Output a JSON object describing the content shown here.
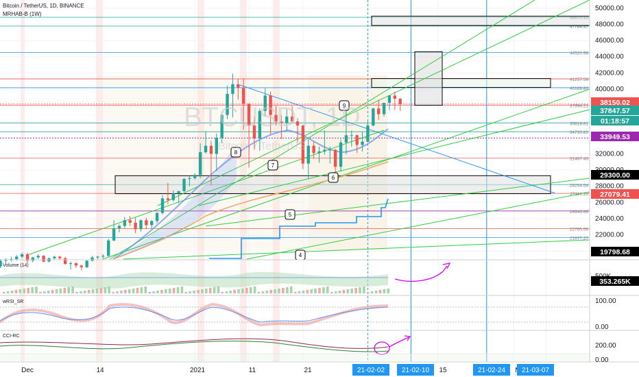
{
  "header": {
    "symbol": "Bitcoin / TetherUS, 1D, BINANCE",
    "indicator": "MRHAB-B (1W)"
  },
  "watermark": {
    "symbol": "BTCUSDT, 1D",
    "name": "Bitcoin / TetherUS"
  },
  "colors": {
    "up": "#26a69a",
    "down": "#ef5350",
    "trendline": "#2ecc40",
    "level_blue": "#2196f3",
    "level_red": "#ef5350",
    "level_green": "#26a69a",
    "level_purple": "#9c27b0",
    "annotation_magenta": "#d500f9"
  },
  "chart_data": [
    {
      "type": "candlestick",
      "title": "Bitcoin / TetherUS, 1D, BINANCE",
      "ylim": [
        19000,
        51000
      ],
      "y_scale": "linear",
      "y_ticks": [
        20000,
        22000,
        24000,
        26000,
        28000,
        30000,
        32000,
        34000,
        36000,
        38000,
        40000,
        42000,
        44000,
        46000,
        48000,
        50000
      ],
      "y_tick_labels": [
        "20000.00",
        "22000.00",
        "24000.00",
        "26000.00",
        "28000.00",
        "30000.00",
        "32000.00",
        "34000.00",
        "36000.00",
        "38000.00",
        "40000.00",
        "42000.00",
        "44000.00",
        "46000.00",
        "48000.00",
        "50000.00"
      ],
      "x_tick_labels": [
        "Dec",
        "14",
        "2021",
        "11",
        "21",
        "15",
        "Mar"
      ],
      "x_date_badges": [
        "21-02-02",
        "21-02-10",
        "21-02-24",
        "21-03-07"
      ],
      "candles": [
        {
          "date": "2020-11-26",
          "open": 18100,
          "high": 19000,
          "low": 17900,
          "close": 18800
        },
        {
          "date": "2020-11-27",
          "open": 18800,
          "high": 19100,
          "low": 18500,
          "close": 18900
        },
        {
          "date": "2020-11-28",
          "open": 18900,
          "high": 19300,
          "low": 18700,
          "close": 19000
        },
        {
          "date": "2020-11-29",
          "open": 19000,
          "high": 19500,
          "low": 18800,
          "close": 19300
        },
        {
          "date": "2020-11-30",
          "open": 19300,
          "high": 19800,
          "low": 19100,
          "close": 19600
        },
        {
          "date": "2020-12-01",
          "open": 19600,
          "high": 19800,
          "low": 18500,
          "close": 18800
        },
        {
          "date": "2020-12-02",
          "open": 18800,
          "high": 19300,
          "low": 18600,
          "close": 19200
        },
        {
          "date": "2020-12-03",
          "open": 19200,
          "high": 19600,
          "low": 19000,
          "close": 19400
        },
        {
          "date": "2020-12-04",
          "open": 19400,
          "high": 19500,
          "low": 18600,
          "close": 18700
        },
        {
          "date": "2020-12-05",
          "open": 18700,
          "high": 19200,
          "low": 18600,
          "close": 19100
        },
        {
          "date": "2020-12-06",
          "open": 19100,
          "high": 19400,
          "low": 18900,
          "close": 19300
        },
        {
          "date": "2020-12-07",
          "open": 19300,
          "high": 19400,
          "low": 18900,
          "close": 19100
        },
        {
          "date": "2020-12-08",
          "open": 19100,
          "high": 19300,
          "low": 18300,
          "close": 18400
        },
        {
          "date": "2020-12-09",
          "open": 18400,
          "high": 18700,
          "low": 17700,
          "close": 18500
        },
        {
          "date": "2020-12-10",
          "open": 18500,
          "high": 18600,
          "low": 17900,
          "close": 18200
        },
        {
          "date": "2020-12-11",
          "open": 18200,
          "high": 18300,
          "low": 17600,
          "close": 18000
        },
        {
          "date": "2020-12-12",
          "open": 18000,
          "high": 18900,
          "low": 17900,
          "close": 18800
        },
        {
          "date": "2020-12-13",
          "open": 18800,
          "high": 19400,
          "low": 18700,
          "close": 19200
        },
        {
          "date": "2020-12-14",
          "open": 19200,
          "high": 19400,
          "low": 19000,
          "close": 19300
        },
        {
          "date": "2020-12-15",
          "open": 19300,
          "high": 19600,
          "low": 19100,
          "close": 19400
        },
        {
          "date": "2020-12-16",
          "open": 19400,
          "high": 21500,
          "low": 19300,
          "close": 21300
        },
        {
          "date": "2020-12-17",
          "open": 21300,
          "high": 23800,
          "low": 21200,
          "close": 22800
        },
        {
          "date": "2020-12-18",
          "open": 22800,
          "high": 23300,
          "low": 22300,
          "close": 23100
        },
        {
          "date": "2020-12-19",
          "open": 23100,
          "high": 24200,
          "low": 22800,
          "close": 23800
        },
        {
          "date": "2020-12-20",
          "open": 23800,
          "high": 24300,
          "low": 23100,
          "close": 23500
        },
        {
          "date": "2020-12-21",
          "open": 23500,
          "high": 24100,
          "low": 22200,
          "close": 22700
        },
        {
          "date": "2020-12-22",
          "open": 22700,
          "high": 23900,
          "low": 22400,
          "close": 23800
        },
        {
          "date": "2020-12-23",
          "open": 23800,
          "high": 24100,
          "low": 22700,
          "close": 23200
        },
        {
          "date": "2020-12-24",
          "open": 23200,
          "high": 23800,
          "low": 22800,
          "close": 23700
        },
        {
          "date": "2020-12-25",
          "open": 23700,
          "high": 24800,
          "low": 23400,
          "close": 24700
        },
        {
          "date": "2020-12-26",
          "open": 24700,
          "high": 26900,
          "low": 24500,
          "close": 26500
        },
        {
          "date": "2020-12-27",
          "open": 26500,
          "high": 28400,
          "low": 25800,
          "close": 26300
        },
        {
          "date": "2020-12-28",
          "open": 26300,
          "high": 27500,
          "low": 26100,
          "close": 27100
        },
        {
          "date": "2020-12-29",
          "open": 27100,
          "high": 27400,
          "low": 25900,
          "close": 27400
        },
        {
          "date": "2020-12-30",
          "open": 27400,
          "high": 29000,
          "low": 27300,
          "close": 28900
        },
        {
          "date": "2020-12-31",
          "open": 28900,
          "high": 29300,
          "low": 28000,
          "close": 29000
        },
        {
          "date": "2021-01-01",
          "open": 29000,
          "high": 29600,
          "low": 28800,
          "close": 29400
        },
        {
          "date": "2021-01-02",
          "open": 29400,
          "high": 33300,
          "low": 29000,
          "close": 32200
        },
        {
          "date": "2021-01-03",
          "open": 32200,
          "high": 34800,
          "low": 32000,
          "close": 33000
        },
        {
          "date": "2021-01-04",
          "open": 33000,
          "high": 33600,
          "low": 28100,
          "close": 32000
        },
        {
          "date": "2021-01-05",
          "open": 32000,
          "high": 34500,
          "low": 29900,
          "close": 34000
        },
        {
          "date": "2021-01-06",
          "open": 34000,
          "high": 36900,
          "low": 33300,
          "close": 36800
        },
        {
          "date": "2021-01-07",
          "open": 36800,
          "high": 40400,
          "low": 36300,
          "close": 39400
        },
        {
          "date": "2021-01-08",
          "open": 39400,
          "high": 41900,
          "low": 36500,
          "close": 40600
        },
        {
          "date": "2021-01-09",
          "open": 40600,
          "high": 41300,
          "low": 38700,
          "close": 40200
        },
        {
          "date": "2021-01-10",
          "open": 40200,
          "high": 41300,
          "low": 35000,
          "close": 38200
        },
        {
          "date": "2021-01-11",
          "open": 38200,
          "high": 38200,
          "low": 30300,
          "close": 35500
        },
        {
          "date": "2021-01-12",
          "open": 35500,
          "high": 36600,
          "low": 32500,
          "close": 33900
        },
        {
          "date": "2021-01-13",
          "open": 33900,
          "high": 37600,
          "low": 32400,
          "close": 37300
        },
        {
          "date": "2021-01-14",
          "open": 37300,
          "high": 40100,
          "low": 36700,
          "close": 39200
        },
        {
          "date": "2021-01-15",
          "open": 39200,
          "high": 39700,
          "low": 34400,
          "close": 36800
        },
        {
          "date": "2021-01-16",
          "open": 36800,
          "high": 37900,
          "low": 35500,
          "close": 36000
        },
        {
          "date": "2021-01-17",
          "open": 36000,
          "high": 36800,
          "low": 33800,
          "close": 35800
        },
        {
          "date": "2021-01-18",
          "open": 35800,
          "high": 37500,
          "low": 34800,
          "close": 36600
        },
        {
          "date": "2021-01-19",
          "open": 36600,
          "high": 37900,
          "low": 35900,
          "close": 36000
        },
        {
          "date": "2021-01-20",
          "open": 36000,
          "high": 36400,
          "low": 33400,
          "close": 35500
        },
        {
          "date": "2021-01-21",
          "open": 35500,
          "high": 35600,
          "low": 30100,
          "close": 30800
        },
        {
          "date": "2021-01-22",
          "open": 30800,
          "high": 33800,
          "low": 28900,
          "close": 33000
        },
        {
          "date": "2021-01-23",
          "open": 33000,
          "high": 33500,
          "low": 31400,
          "close": 32100
        },
        {
          "date": "2021-01-24",
          "open": 32100,
          "high": 32900,
          "low": 30900,
          "close": 32300
        },
        {
          "date": "2021-01-25",
          "open": 32300,
          "high": 34900,
          "low": 31900,
          "close": 32500
        },
        {
          "date": "2021-01-26",
          "open": 32500,
          "high": 32900,
          "low": 30800,
          "close": 32500
        },
        {
          "date": "2021-01-27",
          "open": 32500,
          "high": 32600,
          "low": 29200,
          "close": 30400
        },
        {
          "date": "2021-01-28",
          "open": 30400,
          "high": 33800,
          "low": 29800,
          "close": 33400
        },
        {
          "date": "2021-01-29",
          "open": 33400,
          "high": 38500,
          "low": 31900,
          "close": 34300
        },
        {
          "date": "2021-01-30",
          "open": 34300,
          "high": 34900,
          "low": 32900,
          "close": 34300
        },
        {
          "date": "2021-01-31",
          "open": 34300,
          "high": 34400,
          "low": 32100,
          "close": 33100
        },
        {
          "date": "2021-02-01",
          "open": 33100,
          "high": 34700,
          "low": 32300,
          "close": 33500
        },
        {
          "date": "2021-02-02",
          "open": 33500,
          "high": 36000,
          "low": 33400,
          "close": 35500
        },
        {
          "date": "2021-02-03",
          "open": 35500,
          "high": 37700,
          "low": 35400,
          "close": 37600
        },
        {
          "date": "2021-02-04",
          "open": 37600,
          "high": 38700,
          "low": 36200,
          "close": 36900
        },
        {
          "date": "2021-02-05",
          "open": 36900,
          "high": 38300,
          "low": 36600,
          "close": 38300
        },
        {
          "date": "2021-02-06",
          "open": 38300,
          "high": 39200,
          "low": 37400,
          "close": 39200
        },
        {
          "date": "2021-02-07",
          "open": 39200,
          "high": 39700,
          "low": 37400,
          "close": 38800
        },
        {
          "date": "2021-02-08",
          "open": 38800,
          "high": 38900,
          "low": 37300,
          "close": 38150
        }
      ],
      "horizontal_levels": [
        {
          "label": "48872.16",
          "value": 48872.16,
          "color": "#26a69a"
        },
        {
          "label": "47784.37",
          "value": 47784.37,
          "color": "#26a69a"
        },
        {
          "label": "44520.98",
          "value": 44520.98,
          "color": "#2196f3"
        },
        {
          "label": "41257.59",
          "value": 41257.59,
          "color": "#ef5350"
        },
        {
          "label": "40169.80",
          "value": 40169.8,
          "color": "#2196f3"
        },
        {
          "label": "37994.21",
          "value": 37994.21,
          "color": "#ef5350"
        },
        {
          "label": "35818.61",
          "value": 35818.61,
          "color": "#26a69a"
        },
        {
          "label": "34730.82",
          "value": 34730.82,
          "color": "#26a69a"
        },
        {
          "label": "31467.43",
          "value": 31467.43,
          "color": "#ef5350"
        },
        {
          "label": "28204.04",
          "value": 28204.04,
          "color": "#26a69a"
        },
        {
          "label": "27116.25",
          "value": 27116.25,
          "color": "#ef5350"
        },
        {
          "label": "24940.66",
          "value": 24940.66,
          "color": "#9c27b0"
        },
        {
          "label": "22765.06",
          "value": 22765.06,
          "color": "#ef5350"
        },
        {
          "label": "21677.27",
          "value": 21677.27,
          "color": "#2196f3"
        }
      ],
      "price_badges": [
        {
          "label": "38150.02",
          "color": "#ef5350"
        },
        {
          "label": "37847.57",
          "color": "#26a69a"
        },
        {
          "label": "01:18:57",
          "color": "#26a69a"
        },
        {
          "label": "33949.53",
          "color": "#9c27b0"
        },
        {
          "label": "29300.00",
          "color": "#000000"
        },
        {
          "label": "27079.41",
          "color": "#ef5350"
        },
        {
          "label": "19798.68",
          "color": "#000000"
        }
      ],
      "wave_labels": [
        "9",
        "8",
        "7",
        "6",
        "5",
        "4"
      ]
    },
    {
      "type": "area",
      "title": "Volume (14)",
      "badge": "353.265K",
      "y_ticks": [
        "500K"
      ]
    },
    {
      "type": "line",
      "title": "wRSI_SR",
      "ylim": [
        0,
        100
      ],
      "y_ticks": [
        "100.00",
        "0.00"
      ]
    },
    {
      "type": "line",
      "title": "CCI-RC",
      "y_ticks": [
        "200.00",
        "0.00"
      ]
    }
  ]
}
